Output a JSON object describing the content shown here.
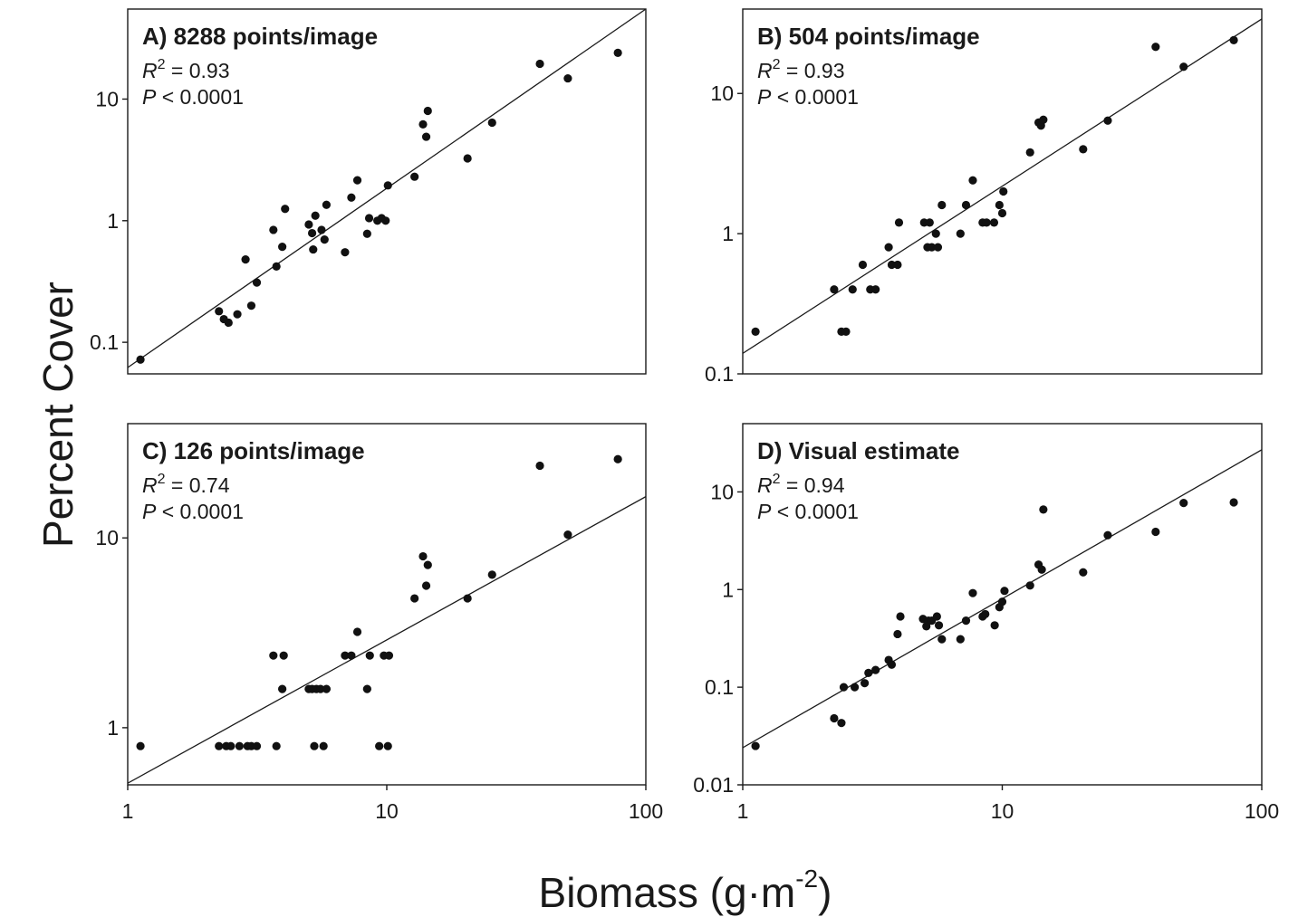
{
  "figure": {
    "ylabel": "Percent Cover",
    "xlabel_main": "Biomass (g·m",
    "xlabel_exp": "-2",
    "xlabel_close": ")"
  },
  "chart_data": [
    {
      "type": "scatter",
      "title": "A) 8288 points/image",
      "stat_r2": "= 0.93",
      "stat_p": "< 0.0001",
      "x_scale": "log",
      "y_scale": "log",
      "xlim": [
        1,
        100
      ],
      "ylim": [
        0.055,
        55
      ],
      "xticks": [],
      "xtick_labels": [],
      "yticks": [
        0.1,
        1,
        10
      ],
      "ytick_labels": [
        "0.1",
        "1",
        "10"
      ],
      "fit_line": [
        [
          1,
          0.062
        ],
        [
          100,
          55
        ]
      ],
      "points": [
        [
          1.12,
          0.072
        ],
        [
          2.25,
          0.18
        ],
        [
          2.35,
          0.155
        ],
        [
          2.45,
          0.145
        ],
        [
          2.65,
          0.17
        ],
        [
          2.85,
          0.48
        ],
        [
          3.0,
          0.2
        ],
        [
          3.15,
          0.31
        ],
        [
          3.65,
          0.84
        ],
        [
          3.75,
          0.42
        ],
        [
          3.95,
          0.61
        ],
        [
          4.05,
          1.25
        ],
        [
          5.0,
          0.93
        ],
        [
          5.15,
          0.79
        ],
        [
          5.2,
          0.58
        ],
        [
          5.3,
          1.1
        ],
        [
          5.6,
          0.84
        ],
        [
          5.75,
          0.7
        ],
        [
          5.85,
          1.35
        ],
        [
          6.9,
          0.55
        ],
        [
          7.3,
          1.55
        ],
        [
          7.7,
          2.15
        ],
        [
          8.4,
          0.78
        ],
        [
          8.55,
          1.05
        ],
        [
          9.2,
          1.0
        ],
        [
          9.55,
          1.05
        ],
        [
          9.9,
          1.0
        ],
        [
          10.1,
          1.95
        ],
        [
          12.8,
          2.3
        ],
        [
          13.8,
          6.2
        ],
        [
          14.2,
          4.9
        ],
        [
          14.4,
          8.0
        ],
        [
          20.5,
          3.25
        ],
        [
          25.5,
          6.4
        ],
        [
          39.0,
          19.5
        ],
        [
          50.0,
          14.8
        ],
        [
          78.0,
          24.0
        ]
      ]
    },
    {
      "type": "scatter",
      "title": "B) 504 points/image",
      "stat_r2": "= 0.93",
      "stat_p": "< 0.0001",
      "x_scale": "log",
      "y_scale": "log",
      "xlim": [
        1,
        100
      ],
      "ylim": [
        0.1,
        40
      ],
      "xticks": [],
      "xtick_labels": [],
      "yticks": [
        0.1,
        1,
        10
      ],
      "ytick_labels": [
        "0.1",
        "1",
        "10"
      ],
      "fit_line": [
        [
          1,
          0.14
        ],
        [
          100,
          34
        ]
      ],
      "points": [
        [
          1.12,
          0.2
        ],
        [
          2.25,
          0.4
        ],
        [
          2.4,
          0.2
        ],
        [
          2.5,
          0.2
        ],
        [
          2.65,
          0.4
        ],
        [
          2.9,
          0.6
        ],
        [
          3.1,
          0.4
        ],
        [
          3.25,
          0.4
        ],
        [
          3.65,
          0.8
        ],
        [
          3.75,
          0.6
        ],
        [
          3.95,
          0.6
        ],
        [
          4.0,
          1.2
        ],
        [
          5.0,
          1.2
        ],
        [
          5.15,
          0.8
        ],
        [
          5.25,
          1.2
        ],
        [
          5.35,
          0.8
        ],
        [
          5.55,
          1.0
        ],
        [
          5.65,
          0.8
        ],
        [
          5.85,
          1.6
        ],
        [
          6.9,
          1.0
        ],
        [
          7.25,
          1.6
        ],
        [
          7.7,
          2.4
        ],
        [
          8.4,
          1.2
        ],
        [
          8.7,
          1.2
        ],
        [
          9.3,
          1.2
        ],
        [
          9.75,
          1.6
        ],
        [
          10.0,
          1.4
        ],
        [
          10.1,
          2.0
        ],
        [
          12.8,
          3.8
        ],
        [
          13.8,
          6.2
        ],
        [
          14.1,
          5.9
        ],
        [
          14.4,
          6.5
        ],
        [
          20.5,
          4.0
        ],
        [
          25.5,
          6.4
        ],
        [
          39.0,
          21.5
        ],
        [
          50.0,
          15.5
        ],
        [
          78.0,
          24.0
        ]
      ]
    },
    {
      "type": "scatter",
      "title": "C) 126 points/image",
      "stat_r2": "= 0.74",
      "stat_p": "< 0.0001",
      "x_scale": "log",
      "y_scale": "log",
      "xlim": [
        1,
        100
      ],
      "ylim": [
        0.5,
        40
      ],
      "xticks": [
        1,
        10,
        100
      ],
      "xtick_labels": [
        "1",
        "10",
        "100"
      ],
      "yticks": [
        1,
        10
      ],
      "ytick_labels": [
        "1",
        "10"
      ],
      "fit_line": [
        [
          1,
          0.51
        ],
        [
          100,
          16.5
        ]
      ],
      "points": [
        [
          1.12,
          0.8
        ],
        [
          2.25,
          0.8
        ],
        [
          2.4,
          0.8
        ],
        [
          2.5,
          0.8
        ],
        [
          2.7,
          0.8
        ],
        [
          2.9,
          0.8
        ],
        [
          3.0,
          0.8
        ],
        [
          3.15,
          0.8
        ],
        [
          3.65,
          2.4
        ],
        [
          3.75,
          0.8
        ],
        [
          3.95,
          1.6
        ],
        [
          4.0,
          2.4
        ],
        [
          5.0,
          1.6
        ],
        [
          5.15,
          1.6
        ],
        [
          5.25,
          0.8
        ],
        [
          5.35,
          1.6
        ],
        [
          5.55,
          1.6
        ],
        [
          5.7,
          0.8
        ],
        [
          5.85,
          1.6
        ],
        [
          6.9,
          2.4
        ],
        [
          7.3,
          2.4
        ],
        [
          7.7,
          3.2
        ],
        [
          8.4,
          1.6
        ],
        [
          8.6,
          2.4
        ],
        [
          9.35,
          0.8
        ],
        [
          9.75,
          2.4
        ],
        [
          10.1,
          0.8
        ],
        [
          10.2,
          2.4
        ],
        [
          12.8,
          4.8
        ],
        [
          13.8,
          8.0
        ],
        [
          14.2,
          5.6
        ],
        [
          14.4,
          7.2
        ],
        [
          20.5,
          4.8
        ],
        [
          25.5,
          6.4
        ],
        [
          39.0,
          24.0
        ],
        [
          50.0,
          10.4
        ],
        [
          78.0,
          26.0
        ]
      ]
    },
    {
      "type": "scatter",
      "title": "D) Visual estimate",
      "stat_r2": "= 0.94",
      "stat_p": "< 0.0001",
      "x_scale": "log",
      "y_scale": "log",
      "xlim": [
        1,
        100
      ],
      "ylim": [
        0.01,
        50
      ],
      "xticks": [
        1,
        10,
        100
      ],
      "xtick_labels": [
        "1",
        "10",
        "100"
      ],
      "yticks": [
        0.01,
        0.1,
        1,
        10
      ],
      "ytick_labels": [
        "0.01",
        "0.1",
        "1",
        "10"
      ],
      "fit_line": [
        [
          1,
          0.024
        ],
        [
          100,
          27
        ]
      ],
      "points": [
        [
          1.12,
          0.025
        ],
        [
          2.25,
          0.048
        ],
        [
          2.4,
          0.043
        ],
        [
          2.45,
          0.1
        ],
        [
          2.7,
          0.1
        ],
        [
          2.95,
          0.11
        ],
        [
          3.05,
          0.14
        ],
        [
          3.25,
          0.15
        ],
        [
          3.65,
          0.19
        ],
        [
          3.75,
          0.17
        ],
        [
          3.95,
          0.35
        ],
        [
          4.05,
          0.53
        ],
        [
          4.95,
          0.5
        ],
        [
          5.1,
          0.42
        ],
        [
          5.2,
          0.48
        ],
        [
          5.35,
          0.48
        ],
        [
          5.6,
          0.53
        ],
        [
          5.7,
          0.43
        ],
        [
          5.85,
          0.31
        ],
        [
          6.9,
          0.31
        ],
        [
          7.25,
          0.48
        ],
        [
          7.7,
          0.92
        ],
        [
          8.4,
          0.53
        ],
        [
          8.6,
          0.56
        ],
        [
          9.35,
          0.43
        ],
        [
          9.75,
          0.66
        ],
        [
          10.0,
          0.75
        ],
        [
          10.2,
          0.97
        ],
        [
          12.8,
          1.1
        ],
        [
          13.8,
          1.8
        ],
        [
          14.2,
          1.6
        ],
        [
          14.4,
          6.6
        ],
        [
          20.5,
          1.5
        ],
        [
          25.5,
          3.6
        ],
        [
          39.0,
          3.9
        ],
        [
          50.0,
          7.7
        ],
        [
          78.0,
          7.8
        ]
      ]
    }
  ]
}
